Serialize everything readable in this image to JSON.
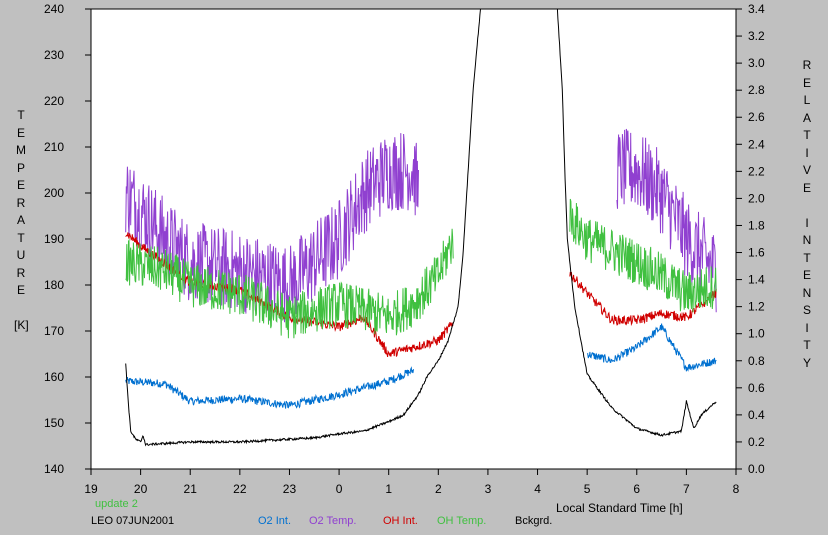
{
  "chart_data": {
    "type": "line",
    "left_axis_letters": [
      "T",
      "E",
      "M",
      "P",
      "E",
      "R",
      "A",
      "T",
      "U",
      "R",
      "E",
      "",
      "[K]"
    ],
    "right_axis_letters": [
      "R",
      "E",
      "L",
      "A",
      "T",
      "I",
      "V",
      "E",
      "",
      "I",
      "N",
      "T",
      "E",
      "N",
      "S",
      "I",
      "T",
      "Y"
    ],
    "xlabel": "Local Standard Time [h]",
    "x_ticks": [
      {
        "v": 19,
        "t": "19"
      },
      {
        "v": 20,
        "t": "20"
      },
      {
        "v": 21,
        "t": "21"
      },
      {
        "v": 22,
        "t": "22"
      },
      {
        "v": 23,
        "t": "23"
      },
      {
        "v": 24,
        "t": "0"
      },
      {
        "v": 25,
        "t": "1"
      },
      {
        "v": 26,
        "t": "2"
      },
      {
        "v": 27,
        "t": "3"
      },
      {
        "v": 28,
        "t": "4"
      },
      {
        "v": 29,
        "t": "5"
      },
      {
        "v": 30,
        "t": "6"
      },
      {
        "v": 31,
        "t": "7"
      },
      {
        "v": 32,
        "t": "8"
      }
    ],
    "xlim": [
      19,
      32
    ],
    "ylim_left": [
      140,
      240
    ],
    "ylim_right": [
      0.0,
      3.4
    ],
    "left_ticks": [
      "140",
      "150",
      "160",
      "170",
      "180",
      "190",
      "200",
      "210",
      "220",
      "230",
      "240"
    ],
    "right_ticks": [
      "0.0",
      "0.2",
      "0.4",
      "0.6",
      "0.8",
      "1.0",
      "1.2",
      "1.4",
      "1.6",
      "1.8",
      "2.0",
      "2.2",
      "2.4",
      "2.6",
      "2.8",
      "3.0",
      "3.2",
      "3.4"
    ],
    "series": [
      {
        "name": "O2 Int.",
        "axis": "right",
        "color": "#0070d0",
        "noise": 0.03,
        "segments": [
          [
            [
              19.7,
              0.65
            ],
            [
              20.5,
              0.63
            ],
            [
              21.0,
              0.5
            ],
            [
              22.0,
              0.52
            ],
            [
              23.0,
              0.47
            ],
            [
              24.0,
              0.55
            ],
            [
              25.0,
              0.65
            ],
            [
              25.5,
              0.73
            ]
          ],
          [
            [
              29.0,
              0.85
            ],
            [
              29.5,
              0.8
            ],
            [
              30.0,
              0.9
            ],
            [
              30.5,
              1.05
            ],
            [
              31.0,
              0.75
            ],
            [
              31.6,
              0.8
            ]
          ]
        ]
      },
      {
        "name": "O2 Temp.",
        "axis": "left",
        "color": "#9040d0",
        "noise": 9,
        "segments": [
          [
            [
              19.7,
              200
            ],
            [
              20.5,
              190
            ],
            [
              21.0,
              185
            ],
            [
              22.0,
              183
            ],
            [
              23.0,
              180
            ],
            [
              24.0,
              190
            ],
            [
              24.5,
              200
            ],
            [
              25.0,
              205
            ],
            [
              25.5,
              205
            ],
            [
              25.6,
              200
            ]
          ],
          [
            [
              29.6,
              205
            ],
            [
              30.0,
              205
            ],
            [
              30.5,
              200
            ],
            [
              31.0,
              190
            ],
            [
              31.6,
              183
            ]
          ]
        ]
      },
      {
        "name": "OH Int.",
        "axis": "right",
        "color": "#d00000",
        "noise": 0.035,
        "segments": [
          [
            [
              19.7,
              1.75
            ],
            [
              20.0,
              1.65
            ],
            [
              21.0,
              1.38
            ],
            [
              22.0,
              1.32
            ],
            [
              23.0,
              1.12
            ],
            [
              24.0,
              1.05
            ],
            [
              24.5,
              1.12
            ],
            [
              25.0,
              0.85
            ],
            [
              26.0,
              0.95
            ],
            [
              26.3,
              1.08
            ]
          ],
          [
            [
              28.65,
              1.45
            ],
            [
              29.0,
              1.3
            ],
            [
              29.5,
              1.1
            ],
            [
              30.0,
              1.1
            ],
            [
              30.5,
              1.15
            ],
            [
              31.0,
              1.12
            ],
            [
              31.6,
              1.3
            ]
          ]
        ]
      },
      {
        "name": "OH Temp.",
        "axis": "left",
        "color": "#40c040",
        "noise": 5,
        "segments": [
          [
            [
              19.7,
              185
            ],
            [
              20.5,
              183
            ],
            [
              21.0,
              180
            ],
            [
              22.0,
              178
            ],
            [
              23.0,
              173
            ],
            [
              24.0,
              176
            ],
            [
              25.0,
              173
            ],
            [
              25.5,
              176
            ],
            [
              26.0,
              182
            ],
            [
              26.3,
              190
            ]
          ],
          [
            [
              28.65,
              195
            ],
            [
              29.0,
              190
            ],
            [
              30.0,
              185
            ],
            [
              30.5,
              182
            ],
            [
              31.0,
              178
            ],
            [
              31.6,
              180
            ]
          ]
        ]
      },
      {
        "name": "Bckgrd.",
        "axis": "right",
        "color": "#000000",
        "noise": 0.008,
        "segments": [
          [
            [
              19.7,
              0.78
            ],
            [
              19.75,
              0.5
            ],
            [
              19.8,
              0.28
            ],
            [
              19.9,
              0.22
            ],
            [
              20.0,
              0.2
            ],
            [
              20.05,
              0.25
            ],
            [
              20.1,
              0.18
            ],
            [
              21.0,
              0.2
            ],
            [
              22.0,
              0.2
            ],
            [
              23.0,
              0.22
            ],
            [
              23.5,
              0.23
            ],
            [
              24.0,
              0.26
            ],
            [
              24.5,
              0.28
            ],
            [
              25.0,
              0.35
            ],
            [
              25.3,
              0.4
            ],
            [
              25.6,
              0.55
            ],
            [
              25.8,
              0.7
            ],
            [
              26.0,
              0.8
            ],
            [
              26.2,
              0.95
            ],
            [
              26.4,
              1.2
            ],
            [
              26.5,
              1.6
            ],
            [
              26.6,
              2.2
            ],
            [
              26.7,
              2.8
            ],
            [
              26.85,
              3.4
            ]
          ],
          [
            [
              28.4,
              3.4
            ],
            [
              28.5,
              2.8
            ],
            [
              28.55,
              2.2
            ],
            [
              28.6,
              1.7
            ],
            [
              28.75,
              1.2
            ],
            [
              28.9,
              0.9
            ],
            [
              29.0,
              0.7
            ],
            [
              29.3,
              0.55
            ],
            [
              29.5,
              0.45
            ],
            [
              30.0,
              0.3
            ],
            [
              30.5,
              0.25
            ],
            [
              30.9,
              0.28
            ],
            [
              31.0,
              0.5
            ],
            [
              31.15,
              0.3
            ],
            [
              31.3,
              0.4
            ],
            [
              31.6,
              0.5
            ]
          ]
        ]
      }
    ]
  },
  "footer": {
    "update": "update 2",
    "station": "LEO 07JUN2001",
    "legend": [
      {
        "text": "O2 Int.",
        "color": "#0070d0"
      },
      {
        "text": "O2 Temp.",
        "color": "#9040d0"
      },
      {
        "text": "OH Int.",
        "color": "#d00000"
      },
      {
        "text": "OH Temp.",
        "color": "#40c040"
      },
      {
        "text": "Bckgrd.",
        "color": "#000000"
      }
    ]
  }
}
